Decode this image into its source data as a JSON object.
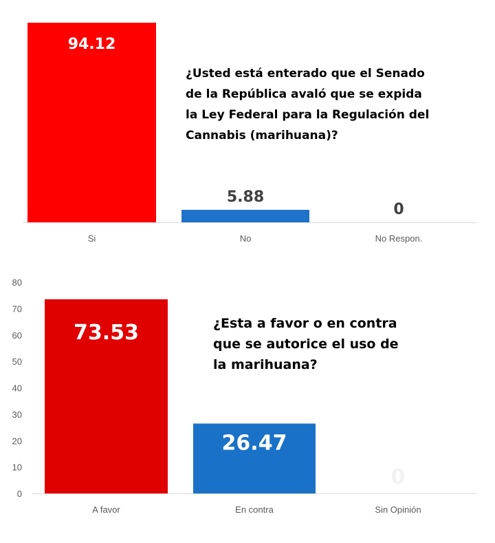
{
  "chart_data": [
    {
      "type": "bar",
      "title": "¿Usted está enterado que el Senado de la República avaló que se expida la Ley Federal para la Regulación del Cannabis (marihuana)?",
      "categories": [
        "Si",
        "No",
        "No Respon."
      ],
      "values": [
        94.12,
        5.88,
        0
      ],
      "value_labels": [
        "94.12",
        "5.88",
        "0"
      ],
      "colors": [
        "#ff0000",
        "#1f72c9",
        "#1f72c9"
      ],
      "ylim": [
        0,
        94.12
      ],
      "yaxis_visible": false
    },
    {
      "type": "bar",
      "title": "¿Esta a favor o en contra que se autorice el uso de la marihuana?",
      "categories": [
        "A favor",
        "En contra",
        "Sin Opinión"
      ],
      "values": [
        73.53,
        26.47,
        0
      ],
      "value_labels": [
        "73.53",
        "26.47",
        "0"
      ],
      "colors": [
        "#e00000",
        "#1a72c8",
        "#1a72c8"
      ],
      "ylim": [
        0,
        80
      ],
      "yticks": [
        "0",
        "10",
        "20",
        "30",
        "40",
        "50",
        "60",
        "70",
        "80"
      ]
    }
  ]
}
